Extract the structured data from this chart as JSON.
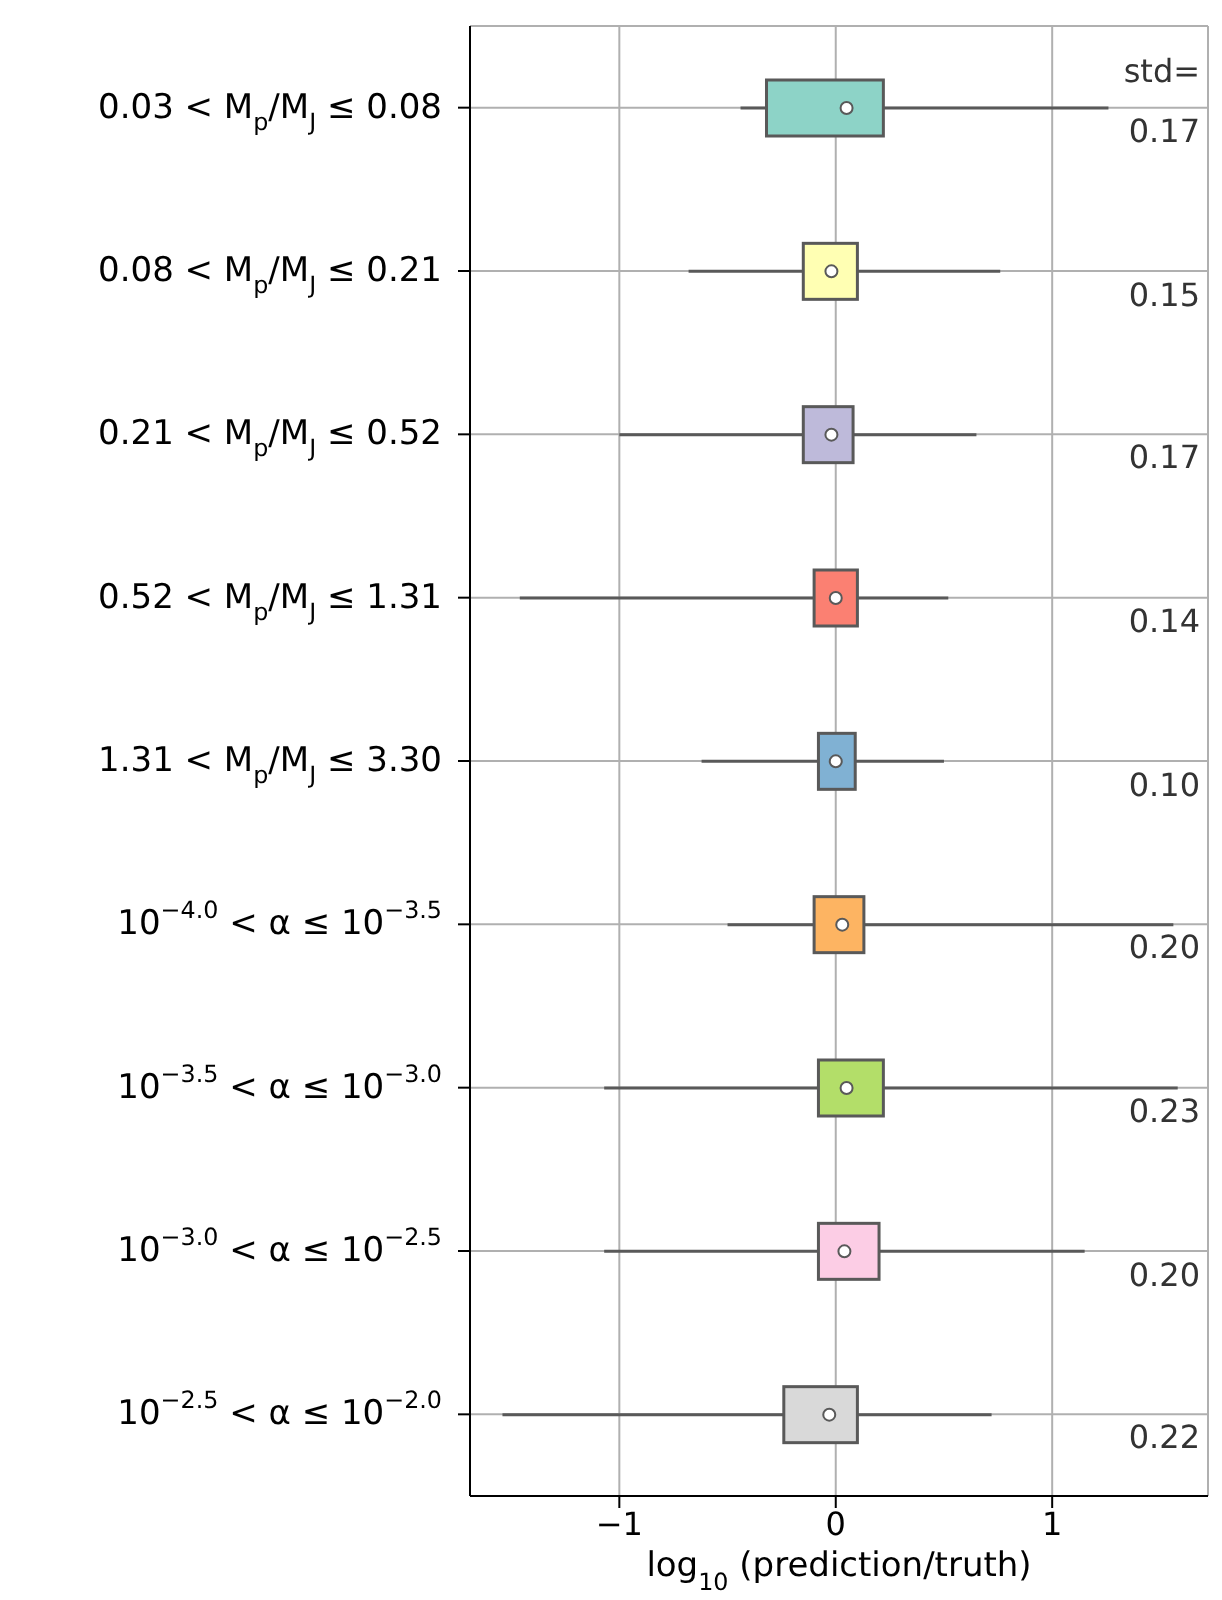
{
  "chart_data": {
    "type": "box",
    "orientation": "horizontal",
    "categories": [
      "0.03 < M$_{p}$/M$_{J}$ ≤ 0.08",
      "0.08 < M$_{p}$/M$_{J}$ ≤ 0.21",
      "0.21 < M$_{p}$/M$_{J}$ ≤ 0.52",
      "0.52 < M$_{p}$/M$_{J}$ ≤ 1.31",
      "1.31 < M$_{p}$/M$_{J}$ ≤ 3.30",
      "10$^{−4.0}$ < α ≤ 10$^{−3.5}$",
      "10$^{−3.5}$ < α ≤ 10$^{−3.0}$",
      "10$^{−3.0}$ < α ≤ 10$^{−2.5}$",
      "10$^{−2.5}$ < α ≤ 10$^{−2.0}$"
    ],
    "boxes": [
      {
        "low": -0.44,
        "q1": -0.32,
        "median": 0.05,
        "q3": 0.22,
        "high": 1.26
      },
      {
        "low": -0.68,
        "q1": -0.15,
        "median": -0.02,
        "q3": 0.1,
        "high": 0.76
      },
      {
        "low": -1.0,
        "q1": -0.15,
        "median": -0.02,
        "q3": 0.08,
        "high": 0.65
      },
      {
        "low": -1.46,
        "q1": -0.1,
        "median": 0.0,
        "q3": 0.1,
        "high": 0.52
      },
      {
        "low": -0.62,
        "q1": -0.08,
        "median": 0.0,
        "q3": 0.09,
        "high": 0.5
      },
      {
        "low": -0.5,
        "q1": -0.1,
        "median": 0.03,
        "q3": 0.13,
        "high": 1.56
      },
      {
        "low": -1.07,
        "q1": -0.08,
        "median": 0.05,
        "q3": 0.22,
        "high": 1.58
      },
      {
        "low": -1.07,
        "q1": -0.08,
        "median": 0.04,
        "q3": 0.2,
        "high": 1.15
      },
      {
        "low": -1.54,
        "q1": -0.24,
        "median": -0.03,
        "q3": 0.1,
        "high": 0.72
      }
    ],
    "colors": [
      "#8dd3c7",
      "#ffffb3",
      "#bebada",
      "#fb8072",
      "#80b1d3",
      "#fdb462",
      "#b3de69",
      "#fccde5",
      "#d9d9d9"
    ],
    "xlabel": "log$_{10}$ (prediction/truth)",
    "xlim": [
      -1.69,
      1.72
    ],
    "xticks": [
      {
        "value": -1,
        "label": "−1"
      },
      0,
      1
    ],
    "grid": true,
    "annotations": [
      "std=",
      "0.17",
      "0.15",
      "0.17",
      "0.14",
      "0.10",
      "0.20",
      "0.23",
      "0.20",
      "0.22"
    ]
  }
}
